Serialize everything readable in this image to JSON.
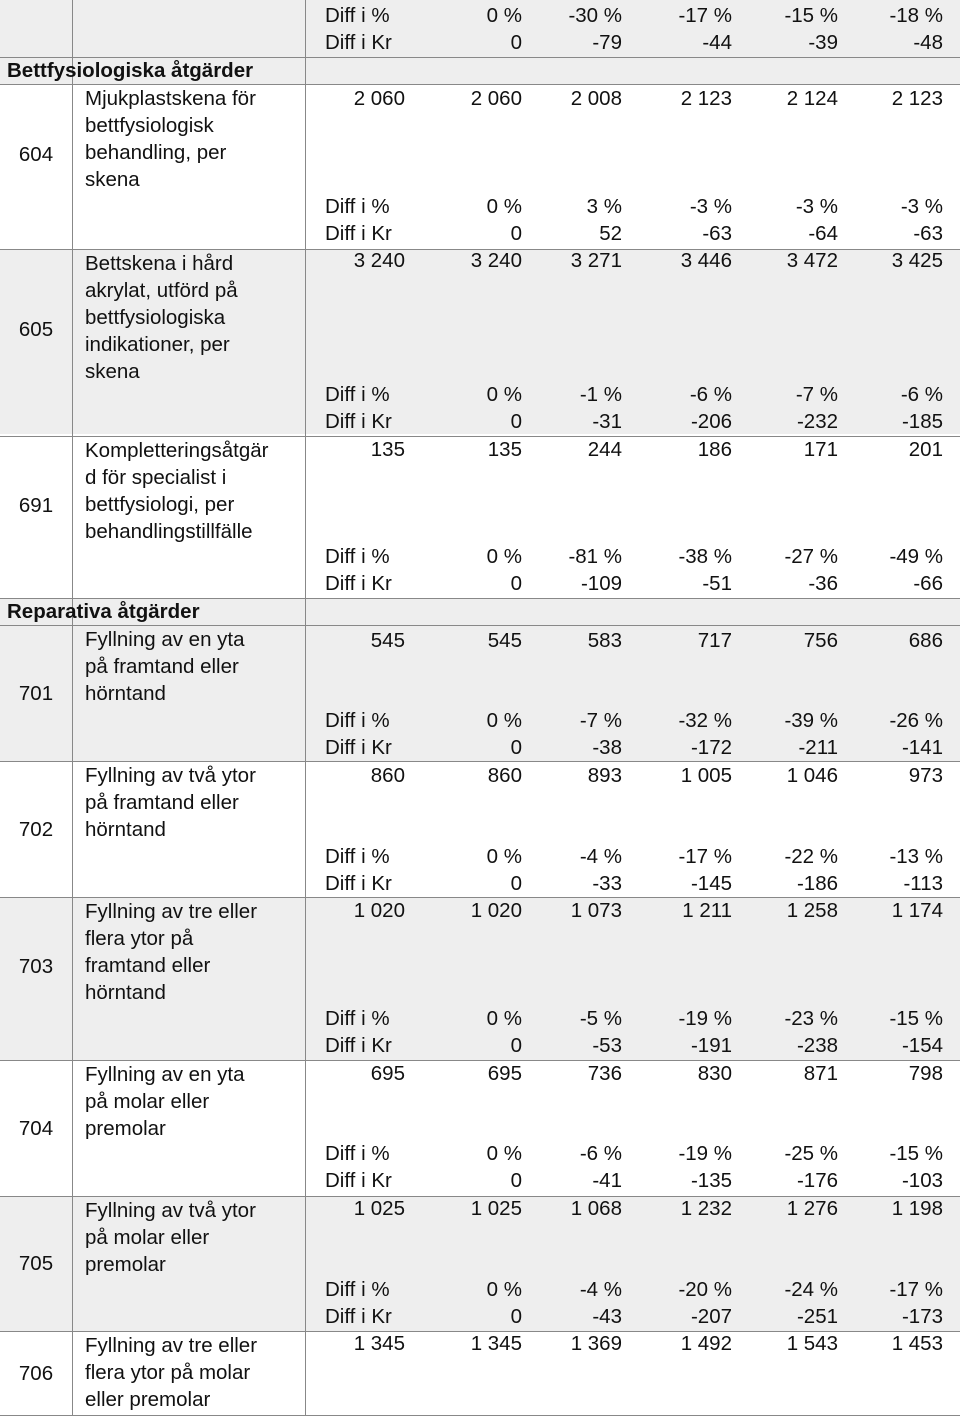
{
  "header": {
    "pct_label": "Diff i %",
    "kr_label": "Diff i Kr",
    "pct": [
      "0 %",
      "-30 %",
      "-17 %",
      "-15 %",
      "-18 %"
    ],
    "kr": [
      "0",
      "-79",
      "-44",
      "-39",
      "-48"
    ]
  },
  "sections": [
    {
      "title": "Bettfysiologiska åtgärder",
      "items": [
        {
          "code": "604",
          "desc": [
            "Mjukplastskena för",
            "bettfysiologisk",
            "behandling, per",
            "skena"
          ],
          "prices": [
            "2 060",
            "2 060",
            "2 008",
            "2 123",
            "2 124",
            "2 123"
          ],
          "pct_label": "Diff i %",
          "kr_label": "Diff i Kr",
          "pct": [
            "0 %",
            "3 %",
            "-3 %",
            "-3 %",
            "-3 %"
          ],
          "kr": [
            "0",
            "52",
            "-63",
            "-64",
            "-63"
          ]
        },
        {
          "code": "605",
          "desc": [
            "Bettskena i hård",
            "akrylat, utförd på",
            "bettfysiologiska",
            "indikationer, per",
            "skena"
          ],
          "prices": [
            "3 240",
            "3 240",
            "3 271",
            "3 446",
            "3 472",
            "3 425"
          ],
          "pct_label": "Diff i %",
          "kr_label": "Diff i Kr",
          "pct": [
            "0 %",
            "-1 %",
            "-6 %",
            "-7 %",
            "-6 %"
          ],
          "kr": [
            "0",
            "-31",
            "-206",
            "-232",
            "-185"
          ]
        },
        {
          "code": "691",
          "desc": [
            "Kompletteringsåtgär",
            "d för specialist i",
            "bettfysiologi, per",
            "behandlingstillfälle"
          ],
          "prices": [
            "135",
            "135",
            "244",
            "186",
            "171",
            "201"
          ],
          "pct_label": "Diff i %",
          "kr_label": "Diff i Kr",
          "pct": [
            "0 %",
            "-81 %",
            "-38 %",
            "-27 %",
            "-49 %"
          ],
          "kr": [
            "0",
            "-109",
            "-51",
            "-36",
            "-66"
          ]
        }
      ]
    },
    {
      "title": "Reparativa åtgärder",
      "items": [
        {
          "code": "701",
          "desc": [
            "Fyllning av en yta",
            "på framtand eller",
            "hörntand"
          ],
          "prices": [
            "545",
            "545",
            "583",
            "717",
            "756",
            "686"
          ],
          "pct_label": "Diff i %",
          "kr_label": "Diff i Kr",
          "pct": [
            "0 %",
            "-7 %",
            "-32 %",
            "-39 %",
            "-26 %"
          ],
          "kr": [
            "0",
            "-38",
            "-172",
            "-211",
            "-141"
          ]
        },
        {
          "code": "702",
          "desc": [
            "Fyllning av två ytor",
            "på framtand eller",
            "hörntand"
          ],
          "prices": [
            "860",
            "860",
            "893",
            "1 005",
            "1 046",
            "973"
          ],
          "pct_label": "Diff i %",
          "kr_label": "Diff i Kr",
          "pct": [
            "0 %",
            "-4 %",
            "-17 %",
            "-22 %",
            "-13 %"
          ],
          "kr": [
            "0",
            "-33",
            "-145",
            "-186",
            "-113"
          ]
        },
        {
          "code": "703",
          "desc": [
            "Fyllning av tre eller",
            "flera ytor på",
            "framtand eller",
            "hörntand"
          ],
          "prices": [
            "1 020",
            "1 020",
            "1 073",
            "1 211",
            "1 258",
            "1 174"
          ],
          "pct_label": "Diff i %",
          "kr_label": "Diff i Kr",
          "pct": [
            "0 %",
            "-5 %",
            "-19 %",
            "-23 %",
            "-15 %"
          ],
          "kr": [
            "0",
            "-53",
            "-191",
            "-238",
            "-154"
          ]
        },
        {
          "code": "704",
          "desc": [
            "Fyllning av en yta",
            "på molar eller",
            "premolar"
          ],
          "prices": [
            "695",
            "695",
            "736",
            "830",
            "871",
            "798"
          ],
          "pct_label": "Diff i %",
          "kr_label": "Diff i Kr",
          "pct": [
            "0 %",
            "-6 %",
            "-19 %",
            "-25 %",
            "-15 %"
          ],
          "kr": [
            "0",
            "-41",
            "-135",
            "-176",
            "-103"
          ]
        },
        {
          "code": "705",
          "desc": [
            "Fyllning av två ytor",
            "på molar eller",
            "premolar"
          ],
          "prices": [
            "1 025",
            "1 025",
            "1 068",
            "1 232",
            "1 276",
            "1 198"
          ],
          "pct_label": "Diff i %",
          "kr_label": "Diff i Kr",
          "pct": [
            "0 %",
            "-4 %",
            "-20 %",
            "-24 %",
            "-17 %"
          ],
          "kr": [
            "0",
            "-43",
            "-207",
            "-251",
            "-173"
          ]
        },
        {
          "code": "706",
          "desc": [
            "Fyllning av tre eller",
            "flera ytor på molar",
            "eller premolar"
          ],
          "prices": [
            "1 345",
            "1 345",
            "1 369",
            "1 492",
            "1 543",
            "1 453"
          ]
        }
      ]
    }
  ],
  "colors": {
    "shade": "#eeeeee",
    "grid": "#888888",
    "text": "#111111"
  }
}
